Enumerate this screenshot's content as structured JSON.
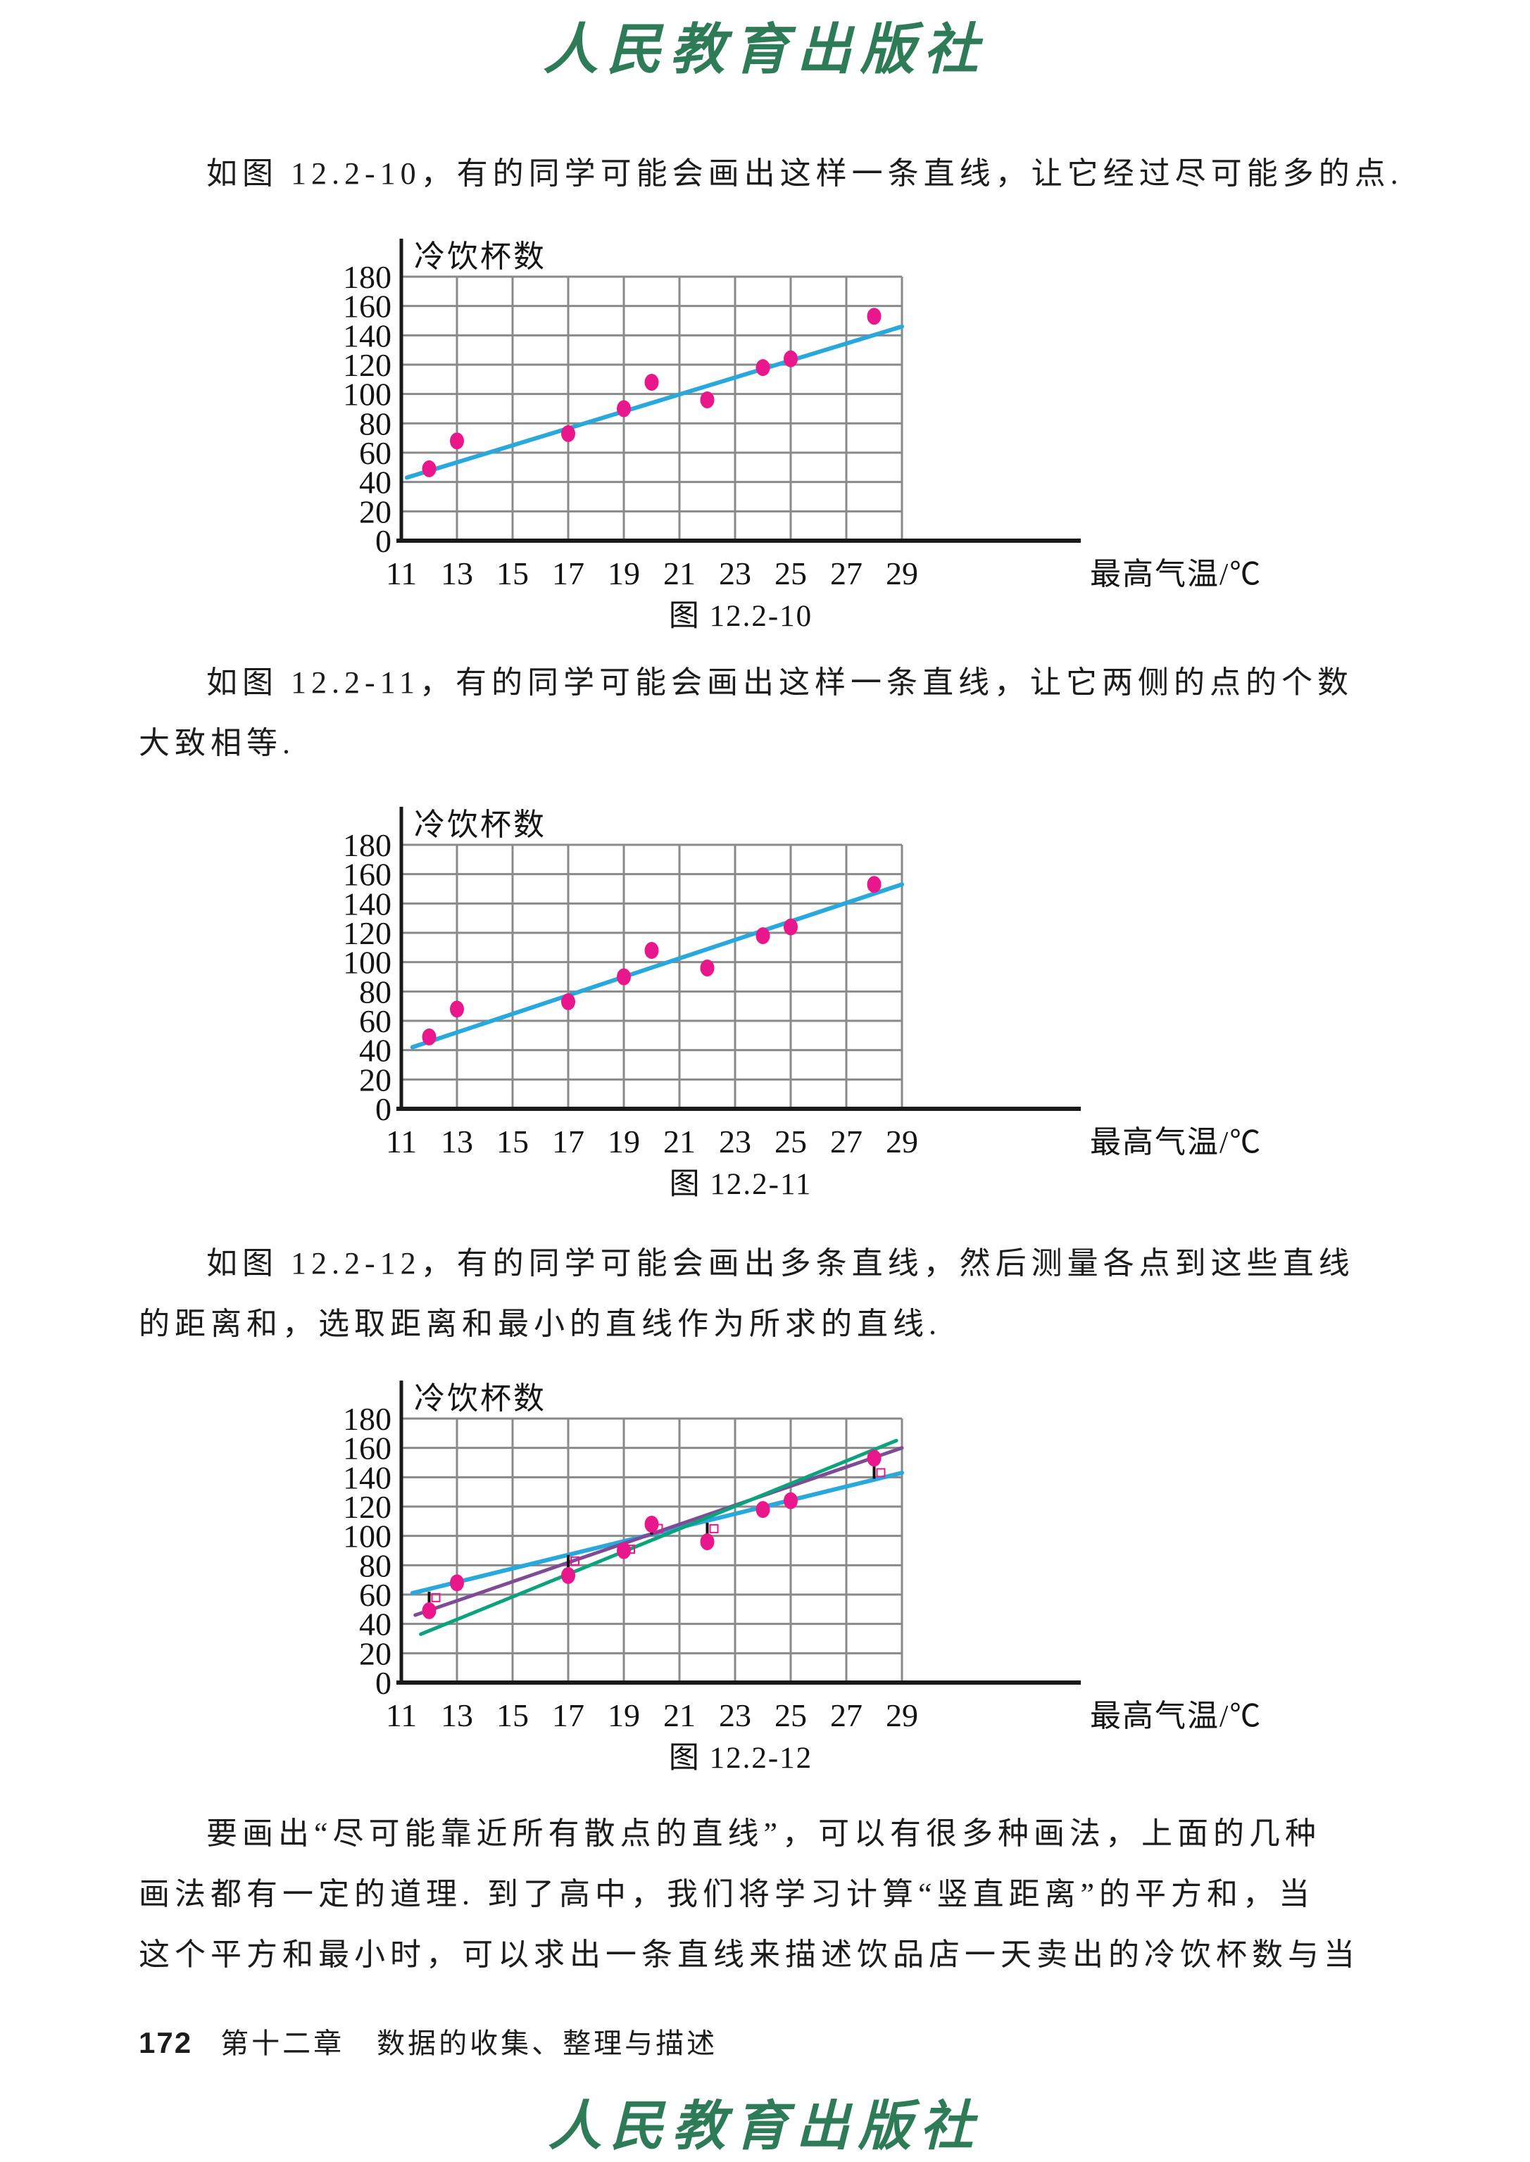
{
  "page": {
    "header_logo": "人民教育出版社",
    "footer_logo": "人民教育出版社",
    "footer": {
      "page_number": "172",
      "chapter": "第十二章",
      "chapter_title": "数据的收集、整理与描述"
    }
  },
  "paragraphs": {
    "p1": {
      "lines": [
        "如图 12.2-10，有的同学可能会画出这样一条直线，让它经过尽可能多的点."
      ]
    },
    "p2": {
      "lines": [
        "如图 12.2-11，有的同学可能会画出这样一条直线，让它两侧的点的个数",
        "大致相等."
      ]
    },
    "p3": {
      "lines": [
        "如图 12.2-12，有的同学可能会画出多条直线，然后测量各点到这些直线",
        "的距离和，选取距离和最小的直线作为所求的直线."
      ]
    },
    "p4": {
      "lines": [
        "要画出“尽可能靠近所有散点的直线”，可以有很多种画法，上面的几种",
        "画法都有一定的道理. 到了高中，我们将学习计算“竖直距离”的平方和，当",
        "这个平方和最小时，可以求出一条直线来描述饮品店一天卖出的冷饮杯数与当"
      ]
    }
  },
  "chart_data": [
    {
      "type": "scatter",
      "caption": "图 12.2-10",
      "ylabel": "冷饮杯数",
      "xlabel": "最高气温/℃",
      "x_ticks": [
        11,
        13,
        15,
        17,
        19,
        21,
        23,
        25,
        27,
        29
      ],
      "y_ticks": [
        0,
        20,
        40,
        60,
        80,
        100,
        120,
        140,
        160,
        180
      ],
      "xlim": [
        11,
        29
      ],
      "ylim": [
        0,
        180
      ],
      "grid": true,
      "point_color": "#ea168c",
      "points": [
        [
          12,
          49
        ],
        [
          13,
          68
        ],
        [
          17,
          73
        ],
        [
          19,
          90
        ],
        [
          20,
          108
        ],
        [
          22,
          96
        ],
        [
          24,
          118
        ],
        [
          25,
          124
        ],
        [
          28,
          153
        ]
      ],
      "lines": [
        {
          "name": "fit-line-through-most-points",
          "color": "#29a8dc",
          "width": 6,
          "from": [
            11.2,
            43
          ],
          "to": [
            29,
            146
          ]
        }
      ]
    },
    {
      "type": "scatter",
      "caption": "图 12.2-11",
      "ylabel": "冷饮杯数",
      "xlabel": "最高气温/℃",
      "x_ticks": [
        11,
        13,
        15,
        17,
        19,
        21,
        23,
        25,
        27,
        29
      ],
      "y_ticks": [
        0,
        20,
        40,
        60,
        80,
        100,
        120,
        140,
        160,
        180
      ],
      "xlim": [
        11,
        29
      ],
      "ylim": [
        0,
        180
      ],
      "grid": true,
      "point_color": "#ea168c",
      "points": [
        [
          12,
          49
        ],
        [
          13,
          68
        ],
        [
          17,
          73
        ],
        [
          19,
          90
        ],
        [
          20,
          108
        ],
        [
          22,
          96
        ],
        [
          24,
          118
        ],
        [
          25,
          124
        ],
        [
          28,
          153
        ]
      ],
      "lines": [
        {
          "name": "fit-line-equal-sides",
          "color": "#29a8dc",
          "width": 6,
          "from": [
            11.4,
            42
          ],
          "to": [
            29,
            153
          ]
        }
      ]
    },
    {
      "type": "scatter",
      "caption": "图 12.2-12",
      "ylabel": "冷饮杯数",
      "xlabel": "最高气温/℃",
      "x_ticks": [
        11,
        13,
        15,
        17,
        19,
        21,
        23,
        25,
        27,
        29
      ],
      "y_ticks": [
        0,
        20,
        40,
        60,
        80,
        100,
        120,
        140,
        160,
        180
      ],
      "xlim": [
        11,
        29
      ],
      "ylim": [
        0,
        180
      ],
      "grid": true,
      "point_color": "#ea168c",
      "points": [
        [
          12,
          49
        ],
        [
          13,
          68
        ],
        [
          17,
          73
        ],
        [
          19,
          90
        ],
        [
          20,
          108
        ],
        [
          22,
          96
        ],
        [
          24,
          118
        ],
        [
          25,
          124
        ],
        [
          28,
          153
        ]
      ],
      "lines": [
        {
          "name": "candidate-line-cyan",
          "color": "#29a8dc",
          "width": 6,
          "from": [
            11.4,
            61
          ],
          "to": [
            29,
            143
          ]
        },
        {
          "name": "candidate-line-purple",
          "color": "#7e4b96",
          "width": 5,
          "from": [
            11.5,
            46
          ],
          "to": [
            29,
            160
          ]
        },
        {
          "name": "candidate-line-green",
          "color": "#0aa37c",
          "width": 5,
          "from": [
            11.7,
            33
          ],
          "to": [
            28.8,
            165
          ]
        }
      ],
      "distance_segments": [
        [
          12,
          49,
          62
        ],
        [
          17,
          73,
          87
        ],
        [
          19,
          90,
          95
        ],
        [
          20,
          108,
          101
        ],
        [
          22,
          96,
          109
        ],
        [
          28,
          153,
          139
        ]
      ]
    }
  ]
}
